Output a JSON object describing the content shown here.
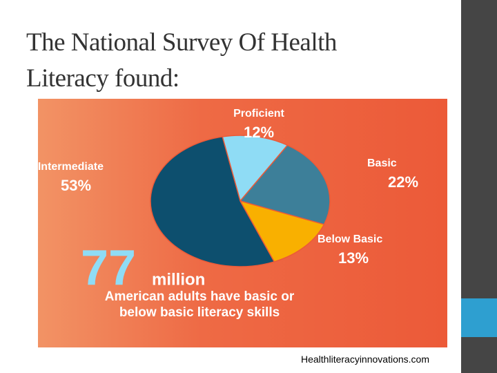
{
  "title": "The National Survey Of Health Literacy  found:",
  "footer": "Healthliteracyinnovations.com",
  "chart_data": {
    "type": "pie",
    "categories": [
      "Proficient",
      "Basic",
      "Below Basic",
      "Intermediate"
    ],
    "values": [
      12,
      22,
      13,
      53
    ],
    "value_labels": [
      "12%",
      "22%",
      "13%",
      "53%"
    ],
    "colors": [
      "#8fdcf5",
      "#3d7f99",
      "#f9b000",
      "#0d4f6e"
    ],
    "annotations": [
      "77",
      "million",
      "American adults have basic or",
      "below basic literacy skills"
    ]
  }
}
